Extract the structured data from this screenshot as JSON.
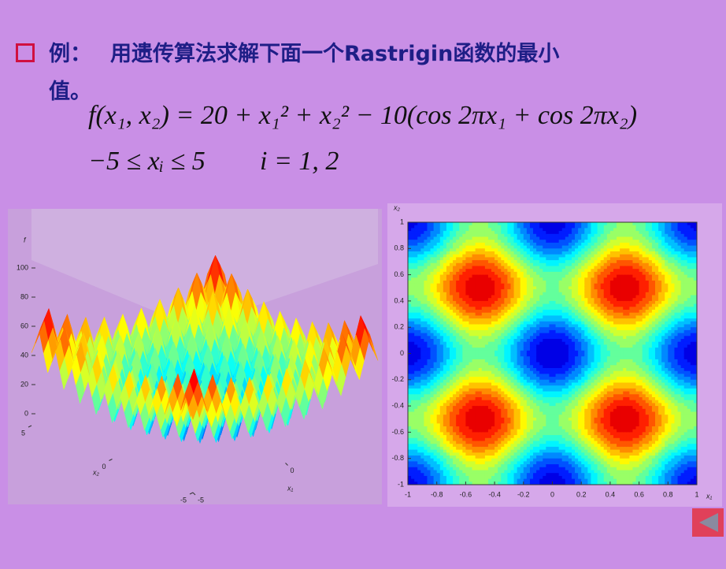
{
  "header": {
    "bullet_label": "例：",
    "text_line1": "用遗传算法求解下面一个Rastrigin函数的最小",
    "text_line2": "值。"
  },
  "formula": {
    "equation": "f(x₁, x₂) = 20 + x₁² + x₂² − 10(cos 2πx₁ + cos 2πx₂)",
    "constraint": "−5 ≤ xᵢ ≤ 5",
    "index": "i = 1, 2"
  },
  "surface_plot": {
    "z_label": "f",
    "zticks": [
      0,
      20,
      40,
      60,
      80,
      100
    ],
    "x2_label": "x₂",
    "x2_ticks": [
      5,
      0,
      -5
    ],
    "x1_label": "x₁",
    "x1_ticks": [
      -5,
      0
    ]
  },
  "contour_plot": {
    "x_label": "x₁",
    "y_label": "x₂",
    "xlim": [
      -1,
      1
    ],
    "ylim": [
      -1,
      1
    ],
    "xticks": [
      -1,
      -0.8,
      -0.6,
      -0.4,
      -0.2,
      0,
      0.2,
      0.4,
      0.6,
      0.8,
      1
    ],
    "yticks": [
      -1,
      -0.8,
      -0.6,
      -0.4,
      -0.2,
      0,
      0.2,
      0.4,
      0.6,
      0.8,
      1
    ]
  }
}
